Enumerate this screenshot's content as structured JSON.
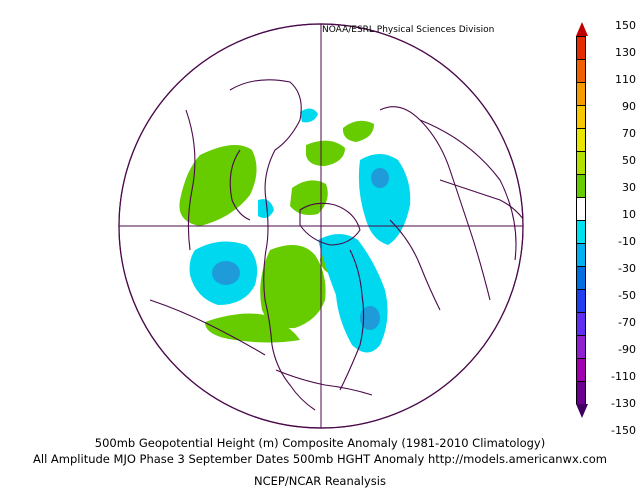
{
  "header": {
    "credit": "NOAA/ESRL Physical Sciences Division"
  },
  "captions": {
    "line1": "500mb Geopotential Height (m) Composite Anomaly (1981-2010 Climatology)",
    "line2": "All Amplitude MJO Phase 3 September Dates 500mb HGHT Anomaly http://models.americanwx.com",
    "line3": "NCEP/NCAR Reanalysis"
  },
  "colorbar": {
    "ticks": [
      "150",
      "130",
      "110",
      "90",
      "70",
      "50",
      "30",
      "10",
      "-10",
      "-30",
      "-50",
      "-70",
      "-90",
      "-110",
      "-130",
      "-150"
    ],
    "colors": [
      "#c00000",
      "#e52b00",
      "#f06000",
      "#f59a00",
      "#f5c800",
      "#e8e600",
      "#b4e000",
      "#66cc00",
      "#ffffff",
      "#00e0f0",
      "#00b0f0",
      "#0070e0",
      "#2040f0",
      "#6030f0",
      "#9020d0",
      "#a000b0",
      "#6a0090",
      "#400060"
    ]
  },
  "map": {
    "projection": "north-polar-stereographic",
    "anomaly_colors": {
      "positive": "#66cc00",
      "negative": "#00d8f0",
      "strong_negative": "#1e9bd8",
      "boundary": "#4a0a4a"
    }
  }
}
